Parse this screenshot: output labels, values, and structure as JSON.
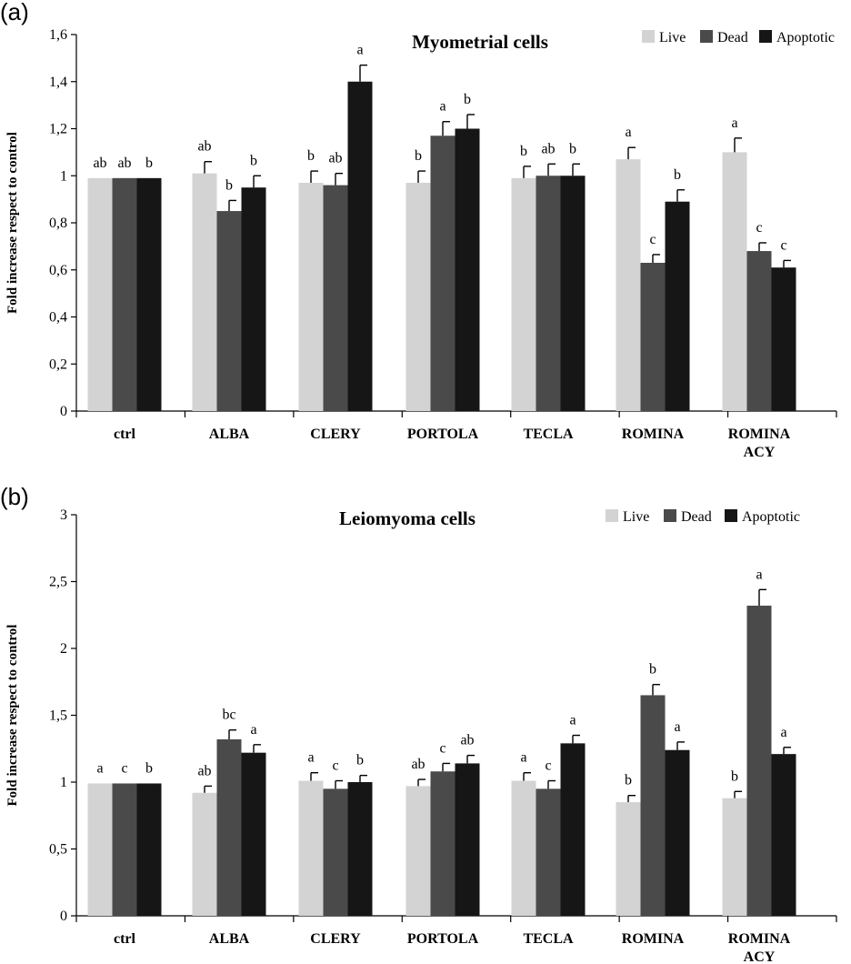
{
  "colors": {
    "Live": "#d3d3d3",
    "Dead": "#4a4a4a",
    "Apoptotic": "#161616"
  },
  "chart_data": [
    {
      "type": "bar",
      "panel": "(a)",
      "title": "Myometrial cells",
      "ylabel": "Fold increase respect to control",
      "ylim": [
        0,
        1.6
      ],
      "yticks": [
        "0",
        "0,2",
        "0,4",
        "0,6",
        "0,8",
        "1",
        "1,2",
        "1,4",
        "1,6"
      ],
      "legend": "top-right",
      "categories": [
        [
          "ctrl"
        ],
        [
          "ALBA"
        ],
        [
          "CLERY"
        ],
        [
          "PORTOLA"
        ],
        [
          "TECLA"
        ],
        [
          "ROMINA"
        ],
        [
          "ROMINA",
          "ACY"
        ]
      ],
      "series": [
        {
          "name": "Live",
          "values": [
            0.99,
            1.01,
            0.97,
            0.97,
            0.99,
            1.07,
            1.1
          ],
          "errors": [
            0,
            0.05,
            0.05,
            0.05,
            0.05,
            0.05,
            0.06
          ],
          "labels": [
            "ab",
            "ab",
            "b",
            "b",
            "b",
            "a",
            "a"
          ]
        },
        {
          "name": "Dead",
          "values": [
            0.99,
            0.85,
            0.96,
            1.17,
            1.0,
            0.63,
            0.68
          ],
          "errors": [
            0,
            0.045,
            0.05,
            0.06,
            0.05,
            0.035,
            0.035
          ],
          "labels": [
            "ab",
            "b",
            "ab",
            "a",
            "ab",
            "c",
            "c"
          ]
        },
        {
          "name": "Apoptotic",
          "values": [
            0.99,
            0.95,
            1.4,
            1.2,
            1.0,
            0.89,
            0.61
          ],
          "errors": [
            0,
            0.05,
            0.07,
            0.06,
            0.05,
            0.05,
            0.03
          ],
          "labels": [
            "b",
            "b",
            "a",
            "b",
            "b",
            "b",
            "c"
          ]
        }
      ]
    },
    {
      "type": "bar",
      "panel": "(b)",
      "title": "Leiomyoma cells",
      "ylabel": "Fold increase respect to control",
      "ylim": [
        0,
        3
      ],
      "yticks": [
        "0",
        "0,5",
        "1",
        "1,5",
        "2",
        "2,5",
        "3"
      ],
      "legend": "top-right",
      "categories": [
        [
          "ctrl"
        ],
        [
          "ALBA"
        ],
        [
          "CLERY"
        ],
        [
          "PORTOLA"
        ],
        [
          "TECLA"
        ],
        [
          "ROMINA"
        ],
        [
          "ROMINA",
          "ACY"
        ]
      ],
      "series": [
        {
          "name": "Live",
          "values": [
            0.99,
            0.92,
            1.01,
            0.97,
            1.01,
            0.85,
            0.88
          ],
          "errors": [
            0,
            0.05,
            0.06,
            0.05,
            0.06,
            0.05,
            0.05
          ],
          "labels": [
            "a",
            "ab",
            "a",
            "ab",
            "a",
            "b",
            "b"
          ]
        },
        {
          "name": "Dead",
          "values": [
            0.99,
            1.32,
            0.95,
            1.08,
            0.95,
            1.65,
            2.32
          ],
          "errors": [
            0,
            0.07,
            0.06,
            0.06,
            0.06,
            0.08,
            0.12
          ],
          "labels": [
            "c",
            "bc",
            "c",
            "c",
            "c",
            "b",
            "a"
          ]
        },
        {
          "name": "Apoptotic",
          "values": [
            0.99,
            1.22,
            1.0,
            1.14,
            1.29,
            1.24,
            1.21
          ],
          "errors": [
            0,
            0.06,
            0.05,
            0.06,
            0.06,
            0.06,
            0.05
          ],
          "labels": [
            "b",
            "a",
            "b",
            "ab",
            "a",
            "a",
            "a"
          ]
        }
      ]
    }
  ]
}
